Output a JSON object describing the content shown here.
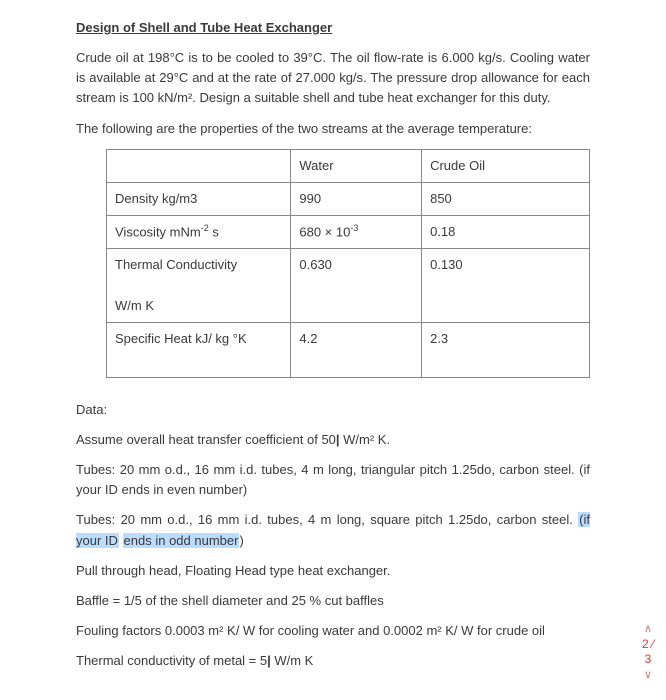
{
  "title": "Design of Shell and Tube Heat Exchanger",
  "p1": "Crude oil at 198°C is to be cooled to 39°C. The oil flow-rate is 6.000  kg/s. Cooling water is available at 29°C and at the rate of 27.000 kg/s. The pressure drop allowance for each stream is 100 kN/m². Design a suitable shell and tube heat exchanger for this duty.",
  "p2": "The following are the properties of the two streams at the average temperature:",
  "table": {
    "h_prop": "",
    "h_water": "Water",
    "h_oil": "Crude Oil",
    "r1_prop": "Density kg/m3",
    "r1_w": "990",
    "r1_o": "850",
    "r2_prop_a": "Viscosity mNm",
    "r2_prop_exp": "-2",
    "r2_prop_b": " s",
    "r2_w_a": "680 × 10",
    "r2_w_exp": "-3",
    "r2_o": "0.18",
    "r3_prop_a": "Thermal Conductivity",
    "r3_prop_b": "W/m K",
    "r3_w": "0.630",
    "r3_o": "0.130",
    "r4_prop": "Specific Heat kJ/ kg °K",
    "r4_w": "4.2",
    "r4_o": "2.3"
  },
  "data_label": "Data:",
  "d1_a": "Assume overall heat transfer coefficient of 50",
  "d1_b": " W/m² K.",
  "d2": "Tubes: 20 mm o.d., 16 mm i.d. tubes, 4 m long, triangular pitch 1.25do, carbon steel. (if your ID ends in even number)",
  "d3_a": "Tubes: 20 mm o.d., 16 mm i.d. tubes, 4 m long, square pitch 1.25do, carbon steel. ",
  "d3_hl1": "(if your ID",
  "d3_hl2": "ends in odd number",
  "d3_b": ")",
  "d4": "Pull through head, Floating Head type heat exchanger.",
  "d5": "Baffle = 1/5 of the shell diameter and 25 % cut baffles",
  "d6": "Fouling factors 0.0003 m² K/ W for cooling water and 0.0002  m² K/ W for crude oil",
  "d7_a": "Thermal conductivity of metal = 5",
  "d7_b": " W/m K",
  "ind": {
    "up": "∧",
    "a": "2",
    "mid": "⁄",
    "b": "3",
    "down": "∨"
  }
}
